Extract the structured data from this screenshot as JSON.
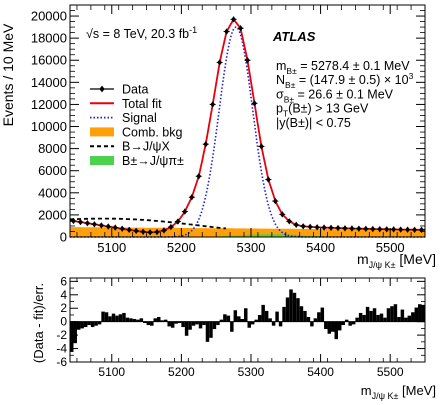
{
  "chart_data": [
    {
      "type": "line",
      "panel": "top",
      "ylabel": "Events / 10 MeV",
      "xlabel": "m_J/ψ K± [MeV]",
      "xlim": [
        5040,
        5550
      ],
      "ylim": [
        0,
        21000
      ],
      "x_ticks": [
        5100,
        5200,
        5300,
        5400,
        5500
      ],
      "x_tick_labels": [
        "5100",
        "5200",
        "5300",
        "5400",
        "5500"
      ],
      "y_ticks": [
        0,
        2000,
        4000,
        6000,
        8000,
        10000,
        12000,
        14000,
        16000,
        18000,
        20000
      ],
      "y_tick_labels": [
        "0",
        "2000",
        "4000",
        "6000",
        "8000",
        "10000",
        "12000",
        "14000",
        "16000",
        "18000",
        "20000"
      ],
      "experiment_label": "ATLAS",
      "energy_label": "√s = 8 TeV, 20.3 fb",
      "energy_label_sup": "-1",
      "fit_results": [
        {
          "sym": "m",
          "sub": "B±",
          "text": " = 5278.4 ± 0.1 MeV"
        },
        {
          "sym": "N",
          "sub": "B±",
          "text": " = (147.9 ± 0.5) × 10",
          "sup": "3"
        },
        {
          "sym": "σ",
          "sub": "B±",
          "text": " = 26.6 ± 0.1 MeV"
        },
        {
          "sym": "p",
          "sub": "T",
          "text": "(B±) > 13 GeV"
        },
        {
          "sym": "|y",
          "sub": "",
          "text": "(B±)| < 0.75"
        }
      ],
      "legend": [
        {
          "label": "Data",
          "style": "data",
          "color": "#000000"
        },
        {
          "label": "Total fit",
          "style": "line",
          "color": "#e8000b"
        },
        {
          "label": "Signal",
          "style": "dotted",
          "color": "#1f1fd6"
        },
        {
          "label": "Comb. bkg",
          "style": "fill",
          "color": "#ff9f0a"
        },
        {
          "label": "B→J/ψX",
          "style": "dashed",
          "color": "#000000"
        },
        {
          "label": "B±→J/ψπ±",
          "style": "fill",
          "color": "#4cd24c"
        }
      ],
      "series": [
        {
          "name": "Data",
          "x": [
            5045,
            5055,
            5065,
            5075,
            5085,
            5095,
            5105,
            5115,
            5125,
            5135,
            5145,
            5155,
            5165,
            5175,
            5185,
            5195,
            5205,
            5215,
            5225,
            5235,
            5245,
            5255,
            5265,
            5275,
            5285,
            5295,
            5305,
            5315,
            5325,
            5335,
            5345,
            5355,
            5365,
            5375,
            5385,
            5395,
            5405,
            5415,
            5425,
            5435,
            5445,
            5455,
            5465,
            5475,
            5485,
            5495,
            5505,
            5515,
            5525,
            5535,
            5545
          ],
          "y": [
            1450,
            1350,
            1250,
            1150,
            1050,
            950,
            850,
            750,
            650,
            550,
            470,
            420,
            450,
            600,
            900,
            1400,
            2300,
            3600,
            5500,
            8400,
            12000,
            15800,
            18600,
            19700,
            18900,
            16000,
            12100,
            8200,
            5200,
            3250,
            2050,
            1420,
            1100,
            970,
            920,
            880,
            850,
            830,
            810,
            790,
            770,
            755,
            740,
            725,
            710,
            700,
            690,
            675,
            665,
            655,
            650
          ]
        }
      ]
    },
    {
      "type": "bar",
      "panel": "bottom",
      "ylabel": "(Data - fit)/err.",
      "xlabel": "m_J/ψ K± [MeV]",
      "xlim": [
        5040,
        5550
      ],
      "ylim": [
        -6,
        6.5
      ],
      "y_ticks": [
        -6,
        -4,
        -2,
        0,
        2,
        4,
        6
      ],
      "y_tick_labels": [
        "-6",
        "-4",
        "-2",
        "0",
        "2",
        "4",
        "6"
      ],
      "x_ticks": [
        5100,
        5200,
        5300,
        5400,
        5500
      ],
      "x_tick_labels": [
        "5100",
        "5200",
        "5300",
        "5400",
        "5500"
      ],
      "bin_width": 5,
      "x": [
        5042.5,
        5047.5,
        5052.5,
        5057.5,
        5062.5,
        5067.5,
        5072.5,
        5077.5,
        5082.5,
        5087.5,
        5092.5,
        5097.5,
        5102.5,
        5107.5,
        5112.5,
        5117.5,
        5122.5,
        5127.5,
        5132.5,
        5137.5,
        5142.5,
        5147.5,
        5152.5,
        5157.5,
        5162.5,
        5167.5,
        5172.5,
        5177.5,
        5182.5,
        5187.5,
        5192.5,
        5197.5,
        5202.5,
        5207.5,
        5212.5,
        5217.5,
        5222.5,
        5227.5,
        5232.5,
        5237.5,
        5242.5,
        5247.5,
        5252.5,
        5257.5,
        5262.5,
        5267.5,
        5272.5,
        5277.5,
        5282.5,
        5287.5,
        5292.5,
        5297.5,
        5302.5,
        5307.5,
        5312.5,
        5317.5,
        5322.5,
        5327.5,
        5332.5,
        5337.5,
        5342.5,
        5347.5,
        5352.5,
        5357.5,
        5362.5,
        5367.5,
        5372.5,
        5377.5,
        5382.5,
        5387.5,
        5392.5,
        5397.5,
        5402.5,
        5407.5,
        5412.5,
        5417.5,
        5422.5,
        5427.5,
        5432.5,
        5437.5,
        5442.5,
        5447.5,
        5452.5,
        5457.5,
        5462.5,
        5467.5,
        5472.5,
        5477.5,
        5482.5,
        5487.5,
        5492.5,
        5497.5,
        5502.5,
        5507.5,
        5512.5,
        5517.5,
        5522.5,
        5527.5,
        5532.5,
        5537.5,
        5542.5,
        5547.5
      ],
      "values": [
        -4.5,
        -3.2,
        -1.2,
        -1.0,
        -0.8,
        -0.5,
        -0.8,
        -0.6,
        -0.4,
        1.5,
        1.4,
        0.8,
        1.2,
        0.9,
        1.1,
        1.3,
        0.6,
        0.5,
        0.4,
        0.3,
        0.5,
        -0.2,
        -0.5,
        -0.6,
        0.5,
        0.7,
        0.2,
        0.3,
        -0.7,
        -0.9,
        -0.3,
        -0.2,
        -0.8,
        -2.1,
        -1.2,
        -0.6,
        -0.4,
        -1.0,
        -0.5,
        -3.0,
        -2.4,
        -1.1,
        -0.5,
        0.3,
        1.1,
        0.9,
        -1.5,
        1.7,
        0.8,
        0.4,
        2.0,
        -0.9,
        -0.4,
        0.3,
        1.0,
        2.5,
        1.6,
        0.5,
        -0.6,
        1.5,
        -0.7,
        2.2,
        3.6,
        4.8,
        4.3,
        3.5,
        2.3,
        1.6,
        0.7,
        -0.7,
        0.5,
        1.4,
        2.1,
        -1.1,
        -1.8,
        -1.5,
        -2.6,
        -1.3,
        -0.5,
        0.3,
        -0.6,
        -0.4,
        0.6,
        1.3,
        1.0,
        2.2,
        1.6,
        2.0,
        1.0,
        1.2,
        0.6,
        2.0,
        2.3,
        2.6,
        0.7,
        1.8,
        0.6,
        0.9,
        1.4,
        2.1,
        2.6,
        2.5
      ]
    }
  ]
}
